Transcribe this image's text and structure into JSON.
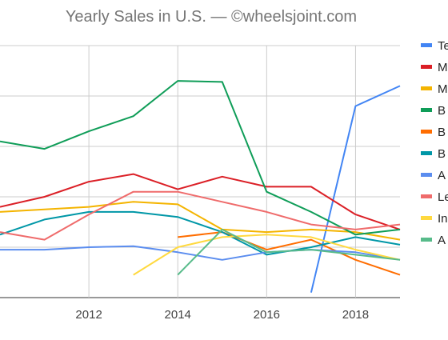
{
  "chart_data": {
    "type": "line",
    "title": "Yearly Sales in U.S. — ©wheelsjoint.com",
    "xlabel": "",
    "ylabel": "",
    "x": [
      2010,
      2011,
      2012,
      2013,
      2014,
      2015,
      2016,
      2017,
      2018,
      2019
    ],
    "xticks": [
      "2012",
      "2014",
      "2016",
      "2018"
    ],
    "xlim": [
      2010,
      2019
    ],
    "ylim": [
      0,
      5
    ],
    "grid": true,
    "legend_position": "right",
    "series": [
      {
        "name": "Te",
        "color": "#4285f4",
        "values": [
          null,
          null,
          null,
          null,
          null,
          null,
          null,
          0.1,
          3.8,
          4.2
        ]
      },
      {
        "name": "M",
        "color": "#db1f26",
        "values": [
          1.8,
          2.0,
          2.3,
          2.45,
          2.15,
          2.4,
          2.2,
          2.2,
          1.65,
          1.35
        ]
      },
      {
        "name": "M",
        "color": "#f4b400",
        "values": [
          1.7,
          1.75,
          1.8,
          1.9,
          1.85,
          1.35,
          1.3,
          1.35,
          1.3,
          1.15
        ]
      },
      {
        "name": "B",
        "color": "#0f9d58",
        "values": [
          3.1,
          2.95,
          3.3,
          3.6,
          4.3,
          4.28,
          2.1,
          1.7,
          1.25,
          1.35
        ]
      },
      {
        "name": "B",
        "color": "#ff6d00",
        "values": [
          null,
          null,
          null,
          null,
          1.2,
          1.3,
          0.95,
          1.15,
          0.75,
          0.45
        ]
      },
      {
        "name": "B",
        "color": "#0097a7",
        "values": [
          1.25,
          1.55,
          1.7,
          1.7,
          1.6,
          1.3,
          0.85,
          1.0,
          1.2,
          1.05
        ]
      },
      {
        "name": "A",
        "color": "#5b8def",
        "values": [
          0.95,
          0.95,
          1.0,
          1.02,
          0.9,
          0.75,
          0.9,
          0.95,
          0.9,
          0.75
        ]
      },
      {
        "name": "Le",
        "color": "#ef6b6b",
        "values": [
          1.3,
          1.15,
          1.65,
          2.1,
          2.1,
          1.9,
          1.7,
          1.45,
          1.35,
          1.45
        ]
      },
      {
        "name": "In",
        "color": "#ffd93f",
        "values": [
          null,
          null,
          null,
          0.45,
          1.0,
          1.2,
          1.25,
          1.2,
          0.95,
          0.75
        ]
      },
      {
        "name": "A",
        "color": "#57bb8a",
        "values": [
          null,
          null,
          null,
          null,
          0.45,
          1.35,
          0.9,
          0.95,
          0.85,
          0.75
        ]
      }
    ]
  }
}
